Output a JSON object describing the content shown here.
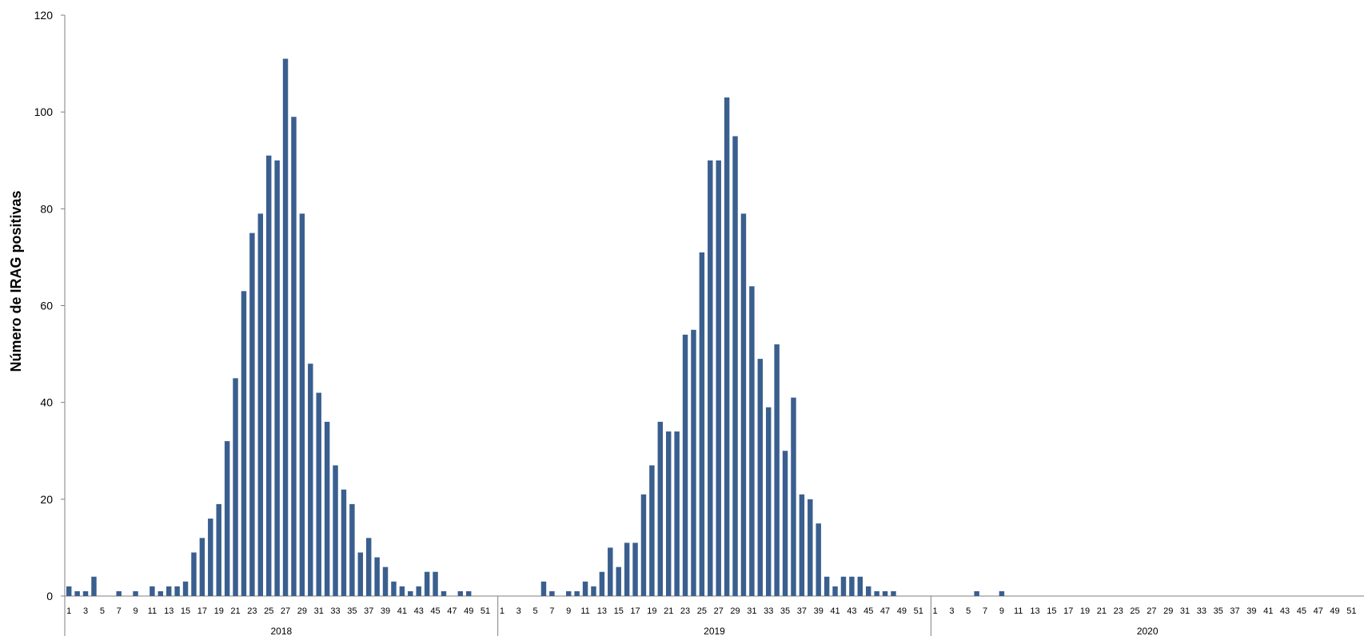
{
  "chart_data": {
    "type": "bar",
    "title": "",
    "xlabel": "",
    "ylabel": "Número de IRAG positivas",
    "ylim": [
      0,
      120
    ],
    "yticks": [
      0,
      20,
      40,
      60,
      80,
      100,
      120
    ],
    "grid": false,
    "legend": "none",
    "color": "#3A5F8F",
    "weeks_per_year": 52,
    "years": [
      {
        "year": "2018",
        "values": [
          2,
          1,
          1,
          4,
          0,
          0,
          1,
          0,
          1,
          0,
          2,
          1,
          2,
          2,
          3,
          9,
          12,
          16,
          19,
          32,
          45,
          63,
          75,
          79,
          91,
          90,
          111,
          99,
          79,
          48,
          42,
          36,
          27,
          22,
          19,
          9,
          12,
          8,
          6,
          3,
          2,
          1,
          2,
          5,
          5,
          1,
          0,
          1,
          1,
          0,
          0,
          0
        ]
      },
      {
        "year": "2019",
        "values": [
          0,
          0,
          0,
          0,
          0,
          3,
          1,
          0,
          1,
          1,
          3,
          2,
          5,
          10,
          6,
          11,
          11,
          21,
          27,
          36,
          34,
          34,
          54,
          55,
          71,
          90,
          90,
          103,
          95,
          79,
          64,
          49,
          39,
          52,
          30,
          41,
          21,
          20,
          15,
          4,
          2,
          4,
          4,
          4,
          2,
          1,
          1,
          1,
          0,
          0,
          0,
          0
        ]
      },
      {
        "year": "2020",
        "values": [
          0,
          0,
          0,
          0,
          0,
          1,
          0,
          0,
          1,
          0,
          0,
          0,
          0,
          0,
          0,
          0,
          0,
          0,
          0,
          0,
          0,
          0,
          0,
          0,
          0,
          0,
          0,
          0,
          0,
          0,
          0,
          0,
          0,
          0,
          0,
          0,
          0,
          0,
          0,
          0,
          0,
          0,
          0,
          0,
          0,
          0,
          0,
          0,
          0,
          0,
          0,
          0
        ]
      }
    ],
    "x_tick_labels": [
      "1",
      "3",
      "5",
      "7",
      "9",
      "11",
      "13",
      "15",
      "17",
      "19",
      "21",
      "23",
      "25",
      "27",
      "29",
      "31",
      "33",
      "35",
      "37",
      "39",
      "41",
      "43",
      "45",
      "47",
      "49",
      "51"
    ]
  }
}
